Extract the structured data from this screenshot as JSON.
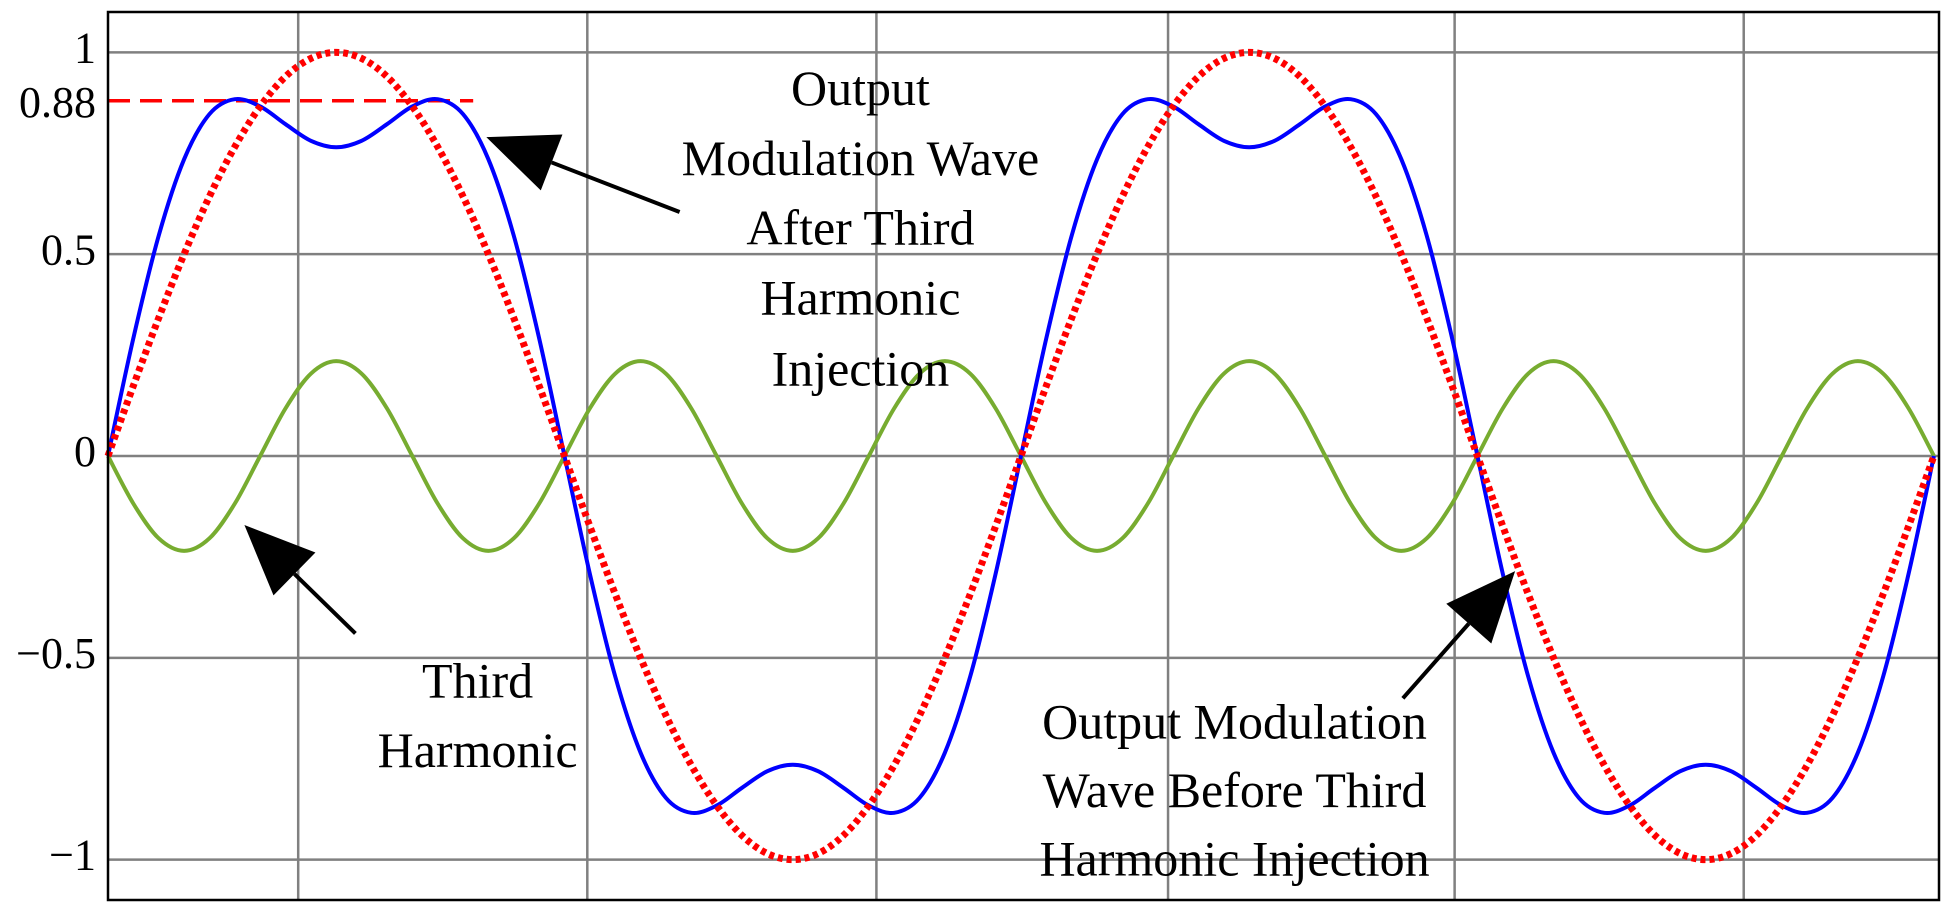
{
  "chart_data": {
    "type": "line",
    "xlim": [
      0,
      722
    ],
    "xticks": [
      75,
      189,
      303,
      418,
      531,
      645
    ],
    "ylim": [
      -1.1,
      1.1
    ],
    "yticks": [
      {
        "value": -1,
        "label": "−1"
      },
      {
        "value": -0.5,
        "label": "−0.5"
      },
      0,
      0.5,
      1
    ],
    "grid": true,
    "x": [
      0,
      10,
      20,
      30,
      40,
      50,
      60,
      70,
      80,
      90,
      100,
      110,
      120,
      130,
      140,
      150,
      160,
      170,
      180,
      190,
      200,
      210,
      220,
      230,
      240,
      250,
      260,
      270,
      280,
      290,
      300,
      310,
      320,
      330,
      340,
      350,
      360,
      370,
      380,
      390,
      400,
      410,
      420,
      430,
      440,
      450,
      460,
      470,
      480,
      490,
      500,
      510,
      520,
      530,
      540,
      550,
      560,
      570,
      580,
      590,
      600,
      610,
      620,
      630,
      640,
      650,
      660,
      670,
      680,
      690,
      700,
      710,
      720
    ],
    "series": [
      {
        "name": "Third Harmonic",
        "color": "#77ac30",
        "style": "solid",
        "values": [
          0,
          -0.118,
          -0.204,
          -0.235,
          -0.204,
          -0.118,
          0,
          0.118,
          0.204,
          0.235,
          0.204,
          0.118,
          0,
          -0.118,
          -0.204,
          -0.235,
          -0.204,
          -0.118,
          0,
          0.118,
          0.204,
          0.235,
          0.204,
          0.118,
          0,
          -0.118,
          -0.204,
          -0.235,
          -0.204,
          -0.118,
          0,
          0.118,
          0.204,
          0.235,
          0.204,
          0.118,
          0,
          -0.118,
          -0.204,
          -0.235,
          -0.204,
          -0.118,
          0,
          0.118,
          0.204,
          0.235,
          0.204,
          0.118,
          0,
          -0.118,
          -0.204,
          -0.235,
          -0.204,
          -0.118,
          0,
          0.118,
          0.204,
          0.235,
          0.204,
          0.118,
          0,
          -0.118,
          -0.204,
          -0.235,
          -0.204,
          -0.118,
          0,
          0.118,
          0.204,
          0.235,
          0.204,
          0.118,
          0
        ]
      },
      {
        "name": "Output Modulation Wave After Third Harmonic Injection",
        "color": "#0000ff",
        "style": "solid",
        "values": [
          0,
          0.292,
          0.546,
          0.735,
          0.847,
          0.884,
          0.866,
          0.822,
          0.781,
          0.765,
          0.781,
          0.822,
          0.866,
          0.884,
          0.847,
          0.735,
          0.546,
          0.292,
          0,
          -0.292,
          -0.546,
          -0.735,
          -0.847,
          -0.884,
          -0.866,
          -0.822,
          -0.781,
          -0.765,
          -0.781,
          -0.822,
          -0.866,
          -0.884,
          -0.847,
          -0.735,
          -0.546,
          -0.292,
          0,
          0.292,
          0.546,
          0.735,
          0.847,
          0.884,
          0.866,
          0.822,
          0.781,
          0.765,
          0.781,
          0.822,
          0.866,
          0.884,
          0.847,
          0.735,
          0.546,
          0.292,
          0,
          -0.292,
          -0.546,
          -0.735,
          -0.847,
          -0.884,
          -0.866,
          -0.822,
          -0.781,
          -0.765,
          -0.781,
          -0.822,
          -0.866,
          -0.884,
          -0.847,
          -0.735,
          -0.546,
          -0.292,
          0
        ]
      },
      {
        "name": "Output Modulation Wave Before Third Harmonic Injection",
        "color": "#ff0000",
        "style": "dotted",
        "values": [
          0,
          0.174,
          0.342,
          0.5,
          0.643,
          0.766,
          0.866,
          0.94,
          0.985,
          1,
          0.985,
          0.94,
          0.866,
          0.766,
          0.643,
          0.5,
          0.342,
          0.174,
          0,
          -0.174,
          -0.342,
          -0.5,
          -0.643,
          -0.766,
          -0.866,
          -0.94,
          -0.985,
          -1,
          -0.985,
          -0.94,
          -0.866,
          -0.766,
          -0.643,
          -0.5,
          -0.342,
          -0.174,
          0,
          0.174,
          0.342,
          0.5,
          0.643,
          0.766,
          0.866,
          0.94,
          0.985,
          1,
          0.985,
          0.94,
          0.866,
          0.766,
          0.643,
          0.5,
          0.342,
          0.174,
          0,
          -0.174,
          -0.342,
          -0.5,
          -0.643,
          -0.766,
          -0.866,
          -0.94,
          -0.985,
          -1,
          -0.985,
          -0.94,
          -0.866,
          -0.766,
          -0.643,
          -0.5,
          -0.342,
          -0.174,
          0
        ]
      }
    ],
    "reference_line": {
      "value": 0.88,
      "x_end": 144,
      "color": "#ff0000"
    },
    "annotations": [
      {
        "lines": [
          "Output",
          "Modulation Wave",
          "After Third",
          "Harmonic",
          "Injection"
        ]
      },
      {
        "lines": [
          "Third",
          "Harmonic"
        ]
      },
      {
        "lines": [
          "Output Modulation",
          "Wave Before Third",
          "Harmonic Injection"
        ]
      }
    ]
  }
}
